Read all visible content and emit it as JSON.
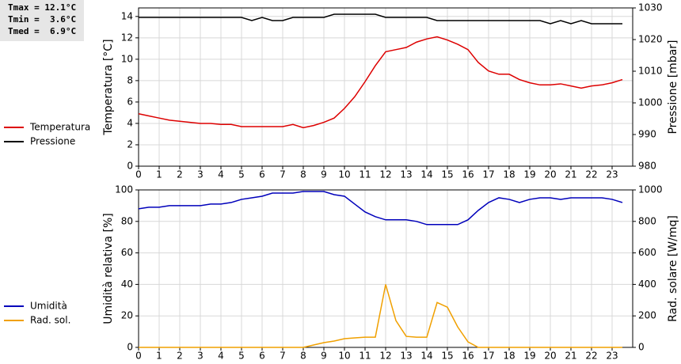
{
  "summary": [
    "Tmax = 12.1°C",
    "Tmin =  3.6°C",
    "Tmed =  6.9°C"
  ],
  "chart_data": [
    {
      "type": "line",
      "ylabel": "Temperatura [°C]",
      "y2label": "Pressione [mbar]",
      "x": [
        0,
        0.5,
        1,
        1.5,
        2,
        2.5,
        3,
        3.5,
        4,
        4.5,
        5,
        5.5,
        6,
        6.5,
        7,
        7.5,
        8,
        8.5,
        9,
        9.5,
        10,
        10.5,
        11,
        11.5,
        12,
        12.5,
        13,
        13.5,
        14,
        14.5,
        15,
        15.5,
        16,
        16.5,
        17,
        17.5,
        18,
        18.5,
        19,
        19.5,
        20,
        20.5,
        21,
        21.5,
        22,
        22.5,
        23,
        23.5
      ],
      "xlim": [
        0,
        24
      ],
      "xticks": [
        0,
        1,
        2,
        3,
        4,
        5,
        6,
        7,
        8,
        9,
        10,
        11,
        12,
        13,
        14,
        15,
        16,
        17,
        18,
        19,
        20,
        21,
        22,
        23
      ],
      "ylim": [
        0,
        14.8
      ],
      "yticks": [
        0,
        2,
        4,
        6,
        8,
        10,
        12,
        14
      ],
      "y2lim": [
        980,
        1030
      ],
      "y2ticks": [
        980,
        990,
        1000,
        1010,
        1020,
        1030
      ],
      "grid": true,
      "series": [
        {
          "name": "Temperatura",
          "color": "#dd0000",
          "values": [
            4.9,
            4.7,
            4.5,
            4.3,
            4.2,
            4.1,
            4.0,
            4.0,
            3.9,
            3.9,
            3.7,
            3.7,
            3.7,
            3.7,
            3.7,
            3.9,
            3.6,
            3.8,
            4.1,
            4.5,
            5.4,
            6.5,
            7.9,
            9.4,
            10.7,
            10.9,
            11.1,
            11.6,
            11.9,
            12.1,
            11.8,
            11.4,
            10.9,
            9.7,
            8.9,
            8.6,
            8.6,
            8.1,
            7.8,
            7.6,
            7.6,
            7.7,
            7.5,
            7.3,
            7.5,
            7.6,
            7.8,
            8.1
          ]
        },
        {
          "name": "Pressione",
          "color": "#000000",
          "axis": "y2",
          "values": [
            1027,
            1027,
            1027,
            1027,
            1027,
            1027,
            1027,
            1027,
            1027,
            1027,
            1027,
            1026,
            1027,
            1026,
            1026,
            1027,
            1027,
            1027,
            1027,
            1028,
            1028,
            1028,
            1028,
            1028,
            1027,
            1027,
            1027,
            1027,
            1027,
            1026,
            1026,
            1026,
            1026,
            1026,
            1026,
            1026,
            1026,
            1026,
            1026,
            1026,
            1025,
            1026,
            1025,
            1026,
            1025,
            1025,
            1025,
            1025
          ]
        }
      ]
    },
    {
      "type": "line",
      "ylabel": "Umidità relativa [%]",
      "y2label": "Rad. solare [W/mq]",
      "x": [
        0,
        0.5,
        1,
        1.5,
        2,
        2.5,
        3,
        3.5,
        4,
        4.5,
        5,
        5.5,
        6,
        6.5,
        7,
        7.5,
        8,
        8.5,
        9,
        9.5,
        10,
        10.5,
        11,
        11.5,
        12,
        12.5,
        13,
        13.5,
        14,
        14.5,
        15,
        15.5,
        16,
        16.5,
        17,
        17.5,
        18,
        18.5,
        19,
        19.5,
        20,
        20.5,
        21,
        21.5,
        22,
        22.5,
        23,
        23.5
      ],
      "xlim": [
        0,
        24
      ],
      "xticks": [
        0,
        1,
        2,
        3,
        4,
        5,
        6,
        7,
        8,
        9,
        10,
        11,
        12,
        13,
        14,
        15,
        16,
        17,
        18,
        19,
        20,
        21,
        22,
        23
      ],
      "ylim": [
        0,
        100
      ],
      "yticks": [
        0,
        20,
        40,
        60,
        80,
        100
      ],
      "y2lim": [
        0,
        1000
      ],
      "y2ticks": [
        0,
        200,
        400,
        600,
        800,
        1000
      ],
      "grid": true,
      "series": [
        {
          "name": "Umidità",
          "color": "#0000bb",
          "values": [
            88,
            89,
            89,
            90,
            90,
            90,
            90,
            91,
            91,
            92,
            94,
            95,
            96,
            98,
            98,
            98,
            99,
            99,
            99,
            97,
            96,
            91,
            86,
            83,
            81,
            81,
            81,
            80,
            78,
            78,
            78,
            78,
            81,
            87,
            92,
            95,
            94,
            92,
            94,
            95,
            95,
            94,
            95,
            95,
            95,
            95,
            94,
            92
          ]
        },
        {
          "name": "Rad. sol.",
          "color": "#f0a000",
          "axis": "y2",
          "values": [
            0,
            0,
            0,
            0,
            0,
            0,
            0,
            0,
            0,
            0,
            0,
            0,
            0,
            0,
            0,
            0,
            0,
            15,
            30,
            40,
            55,
            60,
            65,
            65,
            400,
            170,
            70,
            65,
            65,
            285,
            255,
            130,
            35,
            0,
            0,
            0,
            0,
            0,
            0,
            0,
            0,
            0,
            0,
            0,
            0,
            0,
            0,
            0
          ]
        }
      ]
    }
  ]
}
